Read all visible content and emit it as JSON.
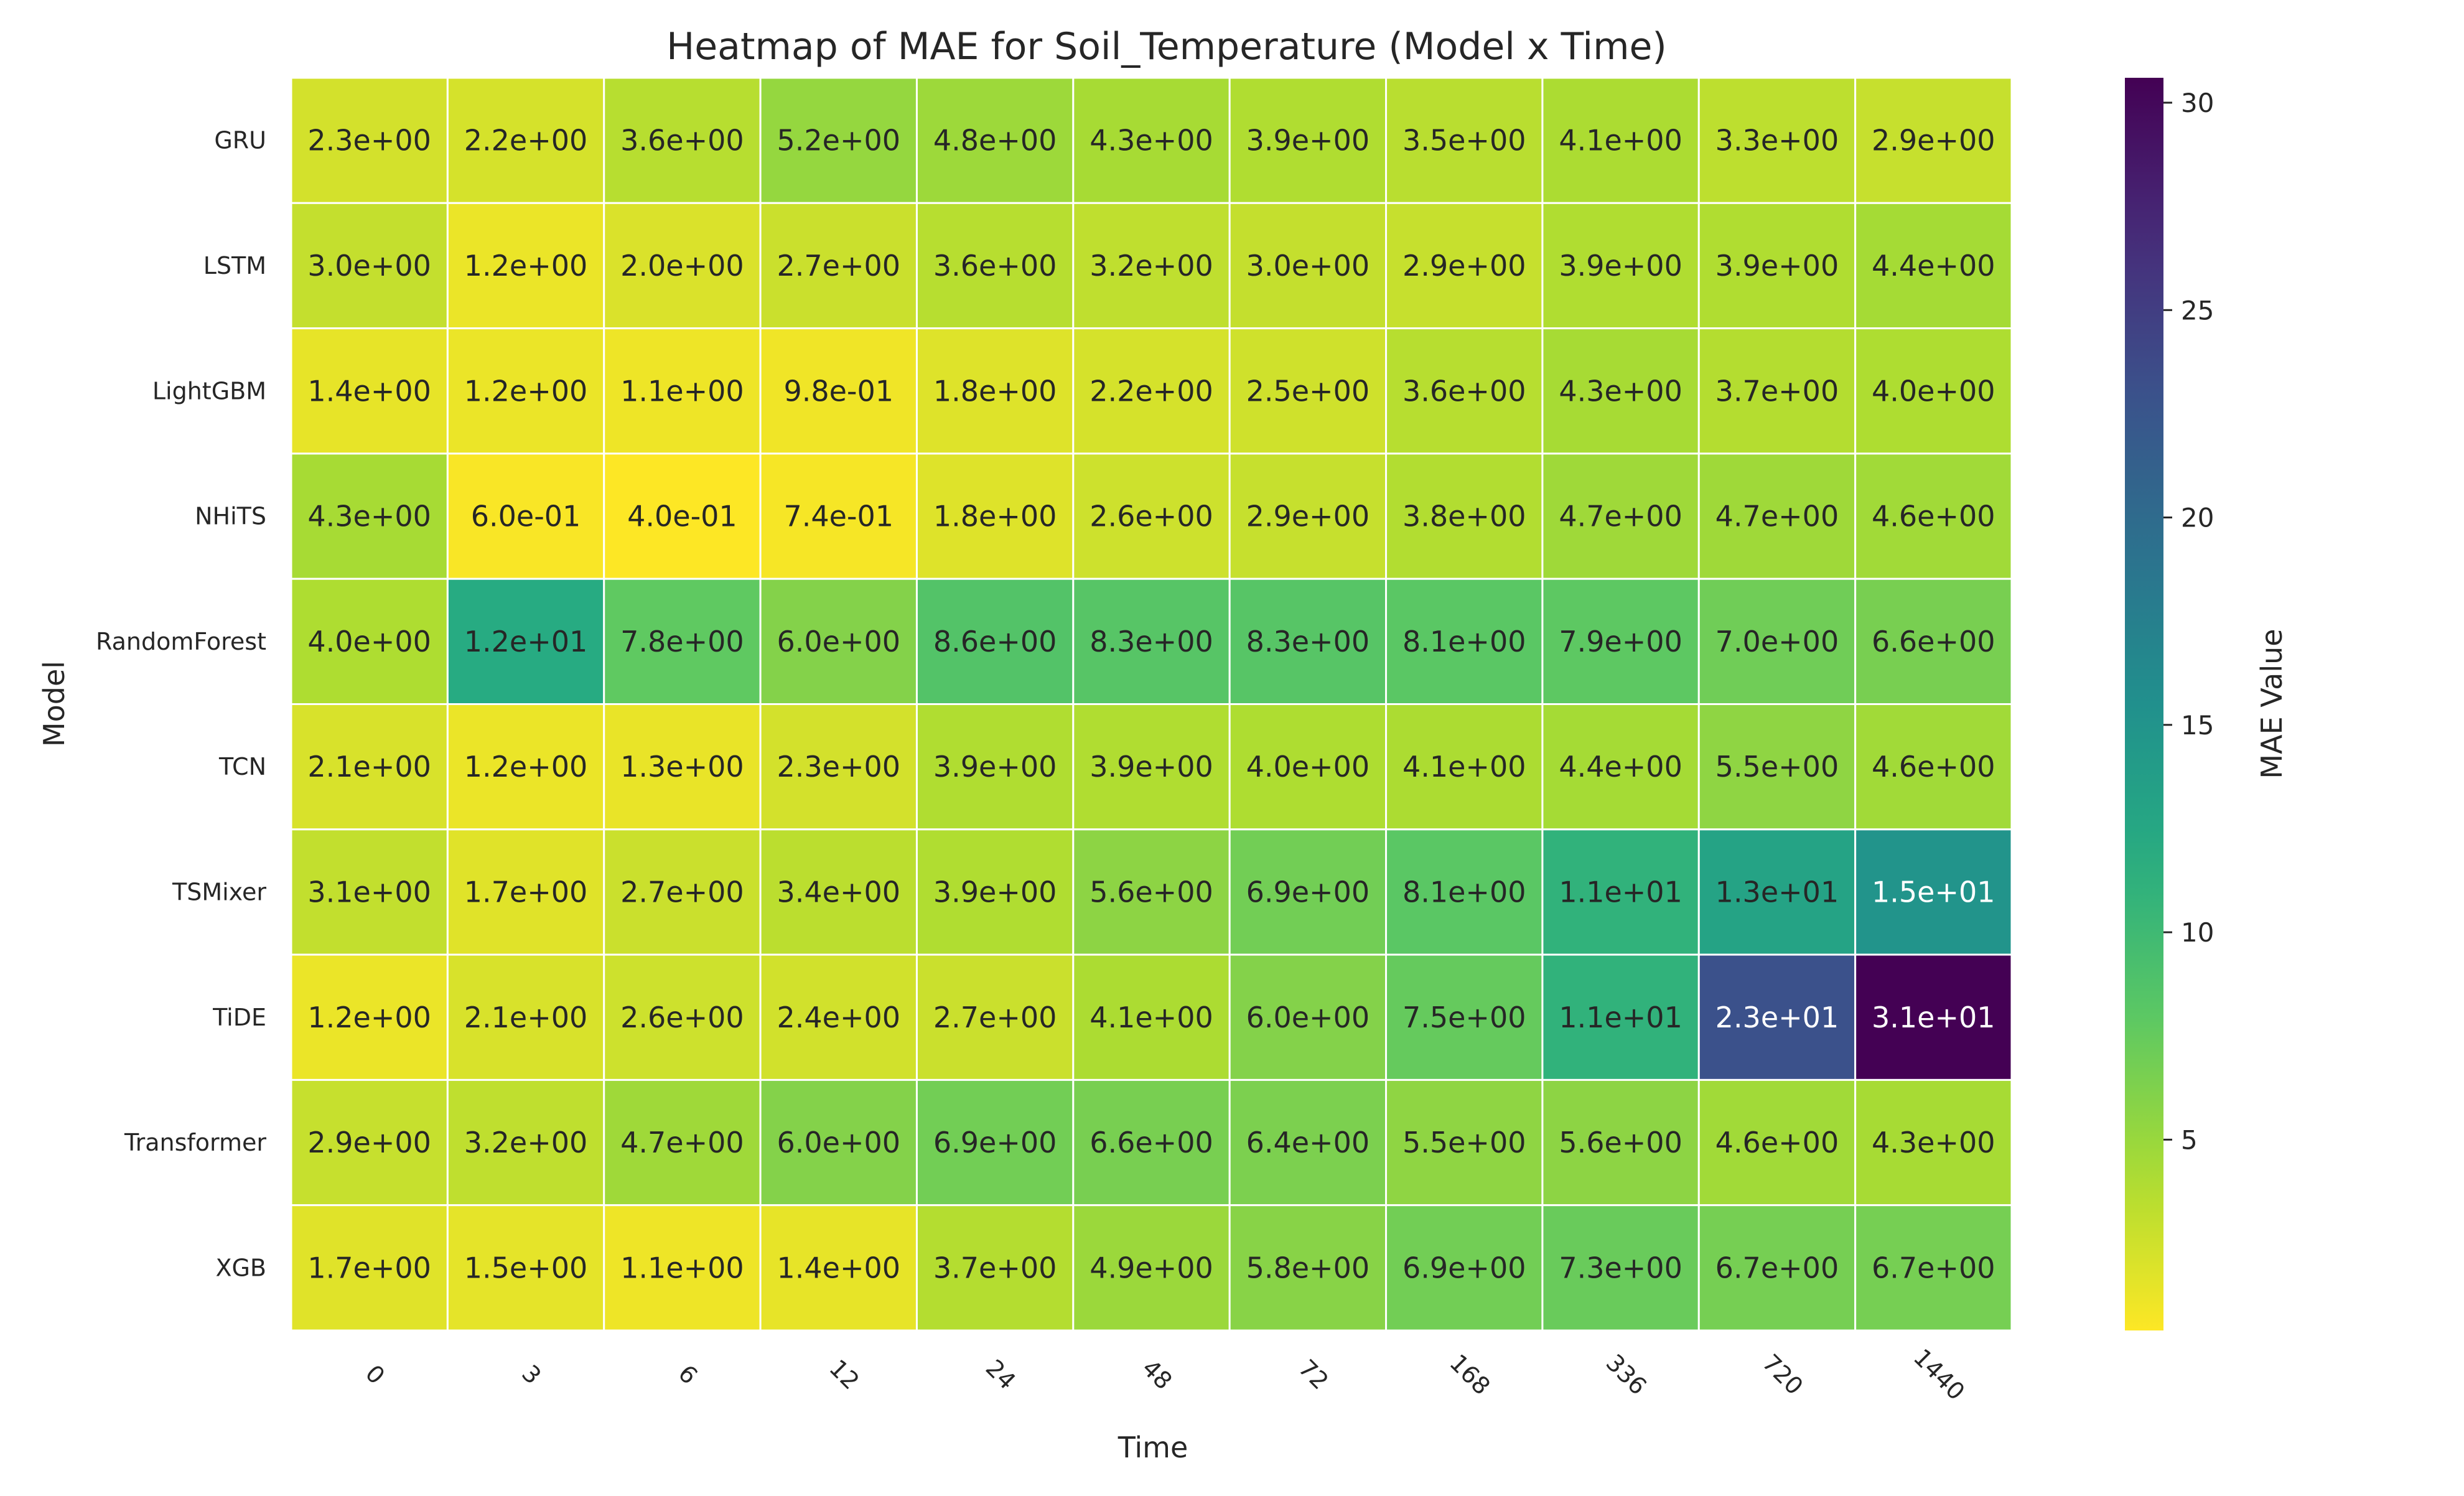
{
  "chart_data": {
    "type": "heatmap",
    "title": "Heatmap of MAE for Soil_Temperature (Model x Time)",
    "xlabel": "Time",
    "ylabel": "Model",
    "colorbar_label": "MAE Value",
    "colormap": "viridis_r",
    "colorbar_ticks": [
      5,
      10,
      15,
      20,
      25,
      30
    ],
    "vmin": 0.4,
    "vmax": 30.6,
    "x_categories": [
      "0",
      "3",
      "6",
      "12",
      "24",
      "48",
      "72",
      "168",
      "336",
      "720",
      "1440"
    ],
    "y_categories": [
      "GRU",
      "LSTM",
      "LightGBM",
      "NHiTS",
      "RandomForest",
      "TCN",
      "TSMixer",
      "TiDE",
      "Transformer",
      "XGB"
    ],
    "values": [
      [
        2.3,
        2.2,
        3.6,
        5.2,
        4.8,
        4.3,
        3.9,
        3.5,
        4.1,
        3.3,
        2.9
      ],
      [
        3.0,
        1.2,
        2.0,
        2.7,
        3.6,
        3.2,
        3.0,
        2.9,
        3.9,
        3.9,
        4.4
      ],
      [
        1.4,
        1.2,
        1.1,
        0.98,
        1.8,
        2.2,
        2.5,
        3.6,
        4.3,
        3.7,
        4.0
      ],
      [
        4.3,
        0.6,
        0.4,
        0.74,
        1.8,
        2.6,
        2.9,
        3.8,
        4.7,
        4.7,
        4.6
      ],
      [
        4.0,
        12,
        7.8,
        6.0,
        8.6,
        8.3,
        8.3,
        8.1,
        7.9,
        7.0,
        6.6
      ],
      [
        2.1,
        1.2,
        1.3,
        2.3,
        3.9,
        3.9,
        4.0,
        4.1,
        4.4,
        5.5,
        4.6
      ],
      [
        3.1,
        1.7,
        2.7,
        3.4,
        3.9,
        5.6,
        6.9,
        8.1,
        11,
        13,
        15
      ],
      [
        1.2,
        2.1,
        2.6,
        2.4,
        2.7,
        4.1,
        6.0,
        7.5,
        11,
        23,
        31
      ],
      [
        2.9,
        3.2,
        4.7,
        6.0,
        6.9,
        6.6,
        6.4,
        5.5,
        5.6,
        4.6,
        4.3
      ],
      [
        1.7,
        1.5,
        1.1,
        1.4,
        3.7,
        4.9,
        5.8,
        6.9,
        7.3,
        6.7,
        6.7
      ]
    ],
    "labels": [
      [
        "2.3e+00",
        "2.2e+00",
        "3.6e+00",
        "5.2e+00",
        "4.8e+00",
        "4.3e+00",
        "3.9e+00",
        "3.5e+00",
        "4.1e+00",
        "3.3e+00",
        "2.9e+00"
      ],
      [
        "3.0e+00",
        "1.2e+00",
        "2.0e+00",
        "2.7e+00",
        "3.6e+00",
        "3.2e+00",
        "3.0e+00",
        "2.9e+00",
        "3.9e+00",
        "3.9e+00",
        "4.4e+00"
      ],
      [
        "1.4e+00",
        "1.2e+00",
        "1.1e+00",
        "9.8e-01",
        "1.8e+00",
        "2.2e+00",
        "2.5e+00",
        "3.6e+00",
        "4.3e+00",
        "3.7e+00",
        "4.0e+00"
      ],
      [
        "4.3e+00",
        "6.0e-01",
        "4.0e-01",
        "7.4e-01",
        "1.8e+00",
        "2.6e+00",
        "2.9e+00",
        "3.8e+00",
        "4.7e+00",
        "4.7e+00",
        "4.6e+00"
      ],
      [
        "4.0e+00",
        "1.2e+01",
        "7.8e+00",
        "6.0e+00",
        "8.6e+00",
        "8.3e+00",
        "8.3e+00",
        "8.1e+00",
        "7.9e+00",
        "7.0e+00",
        "6.6e+00"
      ],
      [
        "2.1e+00",
        "1.2e+00",
        "1.3e+00",
        "2.3e+00",
        "3.9e+00",
        "3.9e+00",
        "4.0e+00",
        "4.1e+00",
        "4.4e+00",
        "5.5e+00",
        "4.6e+00"
      ],
      [
        "3.1e+00",
        "1.7e+00",
        "2.7e+00",
        "3.4e+00",
        "3.9e+00",
        "5.6e+00",
        "6.9e+00",
        "8.1e+00",
        "1.1e+01",
        "1.3e+01",
        "1.5e+01"
      ],
      [
        "1.2e+00",
        "2.1e+00",
        "2.6e+00",
        "2.4e+00",
        "2.7e+00",
        "4.1e+00",
        "6.0e+00",
        "7.5e+00",
        "1.1e+01",
        "2.3e+01",
        "3.1e+01"
      ],
      [
        "2.9e+00",
        "3.2e+00",
        "4.7e+00",
        "6.0e+00",
        "6.9e+00",
        "6.6e+00",
        "6.4e+00",
        "5.5e+00",
        "5.6e+00",
        "4.6e+00",
        "4.3e+00"
      ],
      [
        "1.7e+00",
        "1.5e+00",
        "1.1e+00",
        "1.4e+00",
        "3.7e+00",
        "4.9e+00",
        "5.8e+00",
        "6.9e+00",
        "7.3e+00",
        "6.7e+00",
        "6.7e+00"
      ]
    ]
  }
}
